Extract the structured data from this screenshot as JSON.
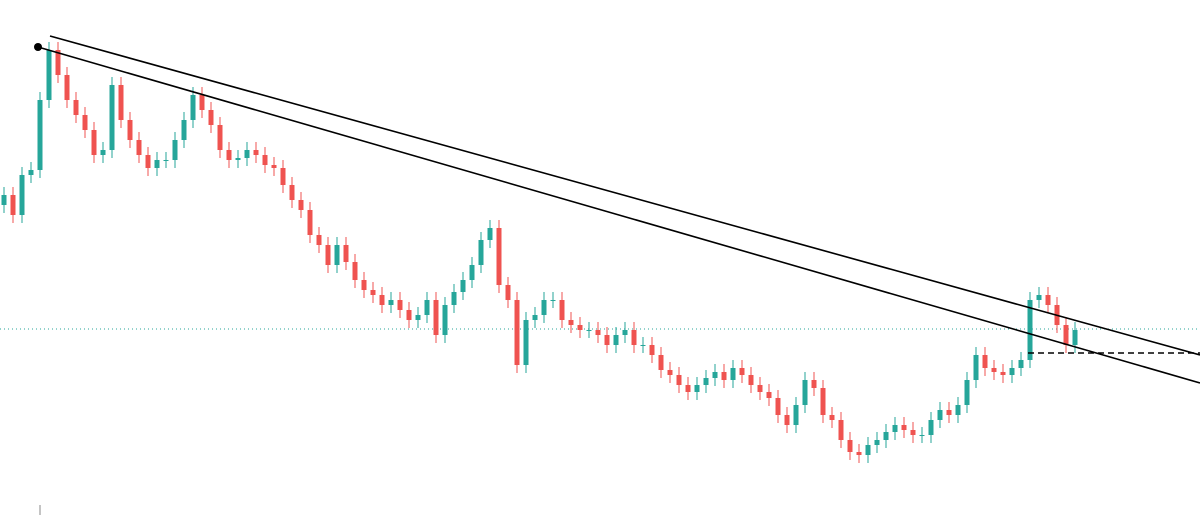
{
  "chart_data": {
    "type": "candlestick",
    "up_color": "#26a69a",
    "down_color": "#ef5350",
    "ylim": [
      0,
      515
    ],
    "open": [
      310,
      320,
      300,
      340,
      345,
      415,
      465,
      440,
      415,
      400,
      385,
      360,
      365,
      430,
      395,
      375,
      360,
      347,
      355,
      355,
      375,
      395,
      420,
      405,
      390,
      365,
      355,
      357,
      365,
      360,
      350,
      347,
      330,
      315,
      305,
      280,
      270,
      250,
      270,
      253,
      235,
      225,
      220,
      210,
      215,
      205,
      195,
      200,
      215,
      180,
      210,
      223,
      235,
      250,
      275,
      287,
      230,
      215,
      150,
      195,
      200,
      215,
      215,
      195,
      190,
      185,
      185,
      180,
      170,
      180,
      185,
      170,
      170,
      160,
      145,
      140,
      130,
      123,
      130,
      137,
      143,
      135,
      147,
      140,
      130,
      123,
      117,
      100,
      90,
      110,
      135,
      127,
      100,
      95,
      75,
      63,
      60,
      70,
      75,
      83,
      90,
      85,
      80,
      80,
      95,
      105,
      100,
      110,
      135,
      160,
      147,
      143,
      140,
      147,
      155,
      215,
      220,
      210,
      190,
      170
    ],
    "high": [
      328,
      328,
      348,
      353,
      423,
      473,
      473,
      448,
      423,
      408,
      393,
      373,
      438,
      438,
      403,
      383,
      368,
      363,
      363,
      383,
      403,
      428,
      428,
      413,
      398,
      373,
      365,
      373,
      373,
      368,
      358,
      355,
      338,
      323,
      313,
      288,
      278,
      278,
      278,
      261,
      243,
      233,
      228,
      223,
      223,
      213,
      208,
      223,
      223,
      218,
      231,
      243,
      258,
      283,
      295,
      295,
      238,
      223,
      203,
      208,
      223,
      223,
      223,
      203,
      198,
      193,
      193,
      188,
      188,
      193,
      193,
      178,
      178,
      168,
      153,
      148,
      138,
      138,
      145,
      151,
      151,
      155,
      155,
      148,
      138,
      131,
      125,
      108,
      118,
      143,
      143,
      135,
      108,
      103,
      83,
      71,
      78,
      83,
      91,
      98,
      98,
      93,
      88,
      103,
      113,
      113,
      118,
      143,
      168,
      168,
      155,
      151,
      155,
      163,
      223,
      228,
      228,
      218,
      198,
      193
    ],
    "low": [
      302,
      292,
      292,
      332,
      337,
      407,
      432,
      407,
      392,
      377,
      352,
      352,
      357,
      387,
      367,
      352,
      339,
      339,
      347,
      347,
      367,
      387,
      397,
      382,
      357,
      347,
      347,
      349,
      352,
      342,
      339,
      322,
      307,
      297,
      272,
      262,
      242,
      242,
      245,
      227,
      217,
      212,
      202,
      202,
      197,
      187,
      187,
      192,
      172,
      172,
      202,
      215,
      227,
      242,
      267,
      222,
      207,
      142,
      142,
      187,
      192,
      207,
      187,
      182,
      177,
      177,
      172,
      162,
      162,
      172,
      162,
      162,
      152,
      137,
      132,
      122,
      115,
      115,
      122,
      129,
      127,
      127,
      132,
      122,
      115,
      109,
      92,
      82,
      82,
      102,
      119,
      92,
      87,
      67,
      55,
      52,
      52,
      62,
      67,
      75,
      77,
      72,
      72,
      72,
      87,
      92,
      92,
      102,
      127,
      139,
      135,
      132,
      132,
      139,
      147,
      207,
      202,
      182,
      162,
      162
    ],
    "close": [
      320,
      300,
      340,
      345,
      415,
      465,
      440,
      415,
      400,
      385,
      360,
      365,
      430,
      395,
      375,
      360,
      347,
      355,
      355,
      375,
      395,
      420,
      405,
      390,
      365,
      355,
      357,
      365,
      360,
      350,
      347,
      330,
      315,
      305,
      280,
      270,
      250,
      270,
      253,
      235,
      225,
      220,
      210,
      215,
      205,
      195,
      200,
      215,
      180,
      210,
      223,
      235,
      250,
      275,
      287,
      230,
      215,
      150,
      195,
      200,
      215,
      215,
      195,
      190,
      185,
      185,
      180,
      170,
      180,
      185,
      170,
      170,
      160,
      145,
      140,
      130,
      123,
      130,
      137,
      143,
      135,
      147,
      140,
      130,
      123,
      117,
      100,
      90,
      110,
      135,
      127,
      100,
      95,
      75,
      63,
      60,
      70,
      75,
      83,
      90,
      85,
      80,
      80,
      95,
      105,
      100,
      110,
      135,
      160,
      147,
      143,
      140,
      147,
      155,
      215,
      220,
      210,
      190,
      170,
      185
    ]
  }
}
